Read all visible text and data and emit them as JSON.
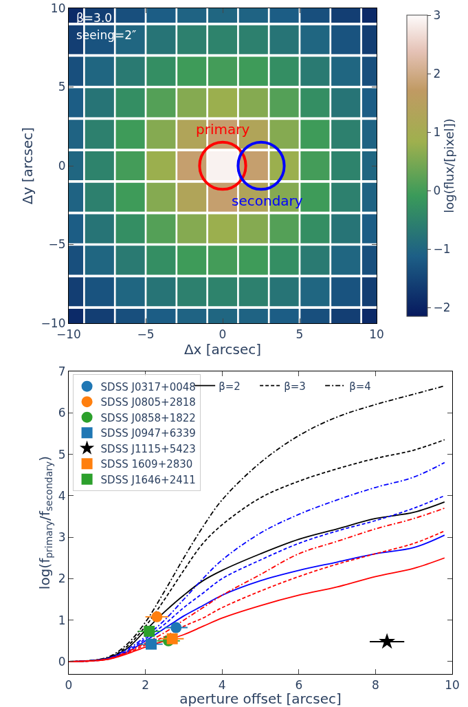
{
  "chart_data": [
    {
      "type": "scatter",
      "marker": "square",
      "xlabel": "Δx [arcsec]",
      "ylabel": "Δy [arcsec]",
      "clabel": "log(flux/[pixel])",
      "x": [
        -10,
        -8,
        -6,
        -4,
        -2,
        0,
        2,
        4,
        6,
        8,
        10,
        -10,
        -8,
        -6,
        -4,
        -2,
        0,
        2,
        4,
        6,
        8,
        10,
        -10,
        -8,
        -6,
        -4,
        -2,
        0,
        2,
        4,
        6,
        8,
        10,
        -10,
        -8,
        -6,
        -4,
        -2,
        0,
        2,
        4,
        6,
        8,
        10,
        -10,
        -8,
        -6,
        -4,
        -2,
        0,
        2,
        4,
        6,
        8,
        10,
        -10,
        -8,
        -6,
        -4,
        -2,
        0,
        2,
        4,
        6,
        8,
        10,
        -10,
        -8,
        -6,
        -4,
        -2,
        0,
        2,
        4,
        6,
        8,
        10,
        -10,
        -8,
        -6,
        -4,
        -2,
        0,
        2,
        4,
        6,
        8,
        10,
        -10,
        -8,
        -6,
        -4,
        -2,
        0,
        2,
        4,
        6,
        8,
        10,
        -10,
        -8,
        -6,
        -4,
        -2,
        0,
        2,
        4,
        6,
        8,
        10,
        -10,
        -8,
        -6,
        -4,
        -2,
        0,
        2,
        4,
        6,
        8,
        10
      ],
      "values": [
        10,
        10,
        10,
        10,
        10,
        10,
        10,
        10,
        10,
        10,
        10,
        8,
        8,
        8,
        8,
        8,
        8,
        8,
        8,
        8,
        8,
        8,
        6,
        6,
        6,
        6,
        6,
        6,
        6,
        6,
        6,
        6,
        6,
        4,
        4,
        4,
        4,
        4,
        4,
        4,
        4,
        4,
        4,
        4,
        2,
        2,
        2,
        2,
        2,
        2,
        2,
        2,
        2,
        2,
        2,
        0,
        0,
        0,
        0,
        0,
        0,
        0,
        0,
        0,
        0,
        0,
        -2,
        -2,
        -2,
        -2,
        -2,
        -2,
        -2,
        -2,
        -2,
        -2,
        -2,
        -4,
        -4,
        -4,
        -4,
        -4,
        -4,
        -4,
        -4,
        -4,
        -4,
        -4,
        -6,
        -6,
        -6,
        -6,
        -6,
        -6,
        -6,
        -6,
        -6,
        -6,
        -6,
        -8,
        -8,
        -8,
        -8,
        -8,
        -8,
        -8,
        -8,
        -8,
        -8,
        -8,
        -10,
        -10,
        -10,
        -10,
        -10,
        -10,
        -10,
        -10,
        -10,
        -10,
        -10
      ],
      "cvalues": [
        -1.9,
        -1.6,
        -1.35,
        -1.15,
        -1.05,
        -1.0,
        -1.05,
        -1.15,
        -1.35,
        -1.6,
        -1.9,
        -1.6,
        -1.3,
        -1.0,
        -0.75,
        -0.55,
        -0.5,
        -0.55,
        -0.75,
        -1.0,
        -1.3,
        -1.6,
        -1.35,
        -1.0,
        -0.65,
        -0.3,
        -0.05,
        0.0,
        -0.05,
        -0.3,
        -0.65,
        -1.0,
        -1.35,
        -1.15,
        -0.75,
        -0.3,
        0.15,
        0.6,
        0.8,
        0.6,
        0.15,
        -0.3,
        -0.75,
        -1.15,
        -1.05,
        -0.55,
        -0.05,
        0.6,
        1.3,
        1.8,
        1.3,
        0.6,
        -0.05,
        -0.55,
        -1.05,
        -1.0,
        -0.5,
        0.0,
        0.8,
        1.8,
        2.9,
        1.8,
        0.8,
        0.0,
        -0.5,
        -1.0,
        -1.05,
        -0.55,
        -0.05,
        0.6,
        1.3,
        1.8,
        1.3,
        0.6,
        -0.05,
        -0.55,
        -1.05,
        -1.15,
        -0.75,
        -0.3,
        0.15,
        0.6,
        0.8,
        0.6,
        0.15,
        -0.3,
        -0.75,
        -1.15,
        -1.35,
        -1.0,
        -0.65,
        -0.3,
        -0.05,
        0.0,
        -0.05,
        -0.3,
        -0.65,
        -1.0,
        -1.35,
        -1.6,
        -1.3,
        -1.0,
        -0.75,
        -0.55,
        -0.5,
        -0.55,
        -0.75,
        -1.0,
        -1.3,
        -1.6,
        -1.9,
        -1.6,
        -1.35,
        -1.15,
        -1.05,
        -1.0,
        -1.05,
        -1.15,
        -1.35,
        -1.6,
        -1.9
      ],
      "xlim": [
        -10,
        10
      ],
      "ylim": [
        -10,
        10
      ],
      "xticks": [
        -10,
        -5,
        0,
        5,
        10
      ],
      "yticks": [
        -10,
        -5,
        0,
        5,
        10
      ],
      "clim": [
        -2.15,
        3
      ],
      "cticks": [
        -2,
        -1,
        0,
        1,
        2,
        3
      ],
      "annotations": [
        "β=3.0",
        "seeing=2″",
        "primary",
        "secondary"
      ]
    },
    {
      "type": "line",
      "xlabel": "aperture offset [arcsec]",
      "ylabel": "log(f$_{primary}$/f$_{secondary}$)",
      "xlim": [
        0,
        10
      ],
      "ylim": [
        -0.3,
        7
      ],
      "xticks": [
        0,
        2,
        4,
        6,
        8,
        10
      ],
      "yticks": [
        0,
        1,
        2,
        3,
        4,
        5,
        6,
        7
      ],
      "legend": "top left",
      "x": [
        0,
        1,
        1.5,
        2,
        2.5,
        3,
        3.5,
        4,
        5,
        6,
        7,
        8,
        9,
        9.8
      ],
      "series": [
        {
          "name": "β=2",
          "color": "#000000",
          "line_style": "solid",
          "values": [
            0,
            0.08,
            0.3,
            0.75,
            1.2,
            1.6,
            1.95,
            2.2,
            2.6,
            2.95,
            3.2,
            3.45,
            3.6,
            3.85
          ]
        },
        {
          "name": "β=3",
          "color": "#000000",
          "line_style": "dashed",
          "values": [
            0,
            0.08,
            0.35,
            0.85,
            1.5,
            2.2,
            2.85,
            3.3,
            3.95,
            4.35,
            4.65,
            4.9,
            5.1,
            5.35
          ]
        },
        {
          "name": "β=4",
          "color": "#000000",
          "line_style": "dashdot",
          "values": [
            0,
            0.1,
            0.4,
            0.95,
            1.7,
            2.5,
            3.25,
            3.9,
            4.8,
            5.45,
            5.9,
            6.2,
            6.45,
            6.65
          ]
        },
        {
          "color": "#0000ff",
          "line_style": "solid",
          "values": [
            0,
            0.06,
            0.22,
            0.5,
            0.8,
            1.1,
            1.35,
            1.6,
            1.95,
            2.2,
            2.4,
            2.6,
            2.75,
            3.05
          ]
        },
        {
          "color": "#0000ff",
          "line_style": "dashed",
          "values": [
            0,
            0.07,
            0.25,
            0.55,
            0.9,
            1.3,
            1.65,
            2.0,
            2.45,
            2.85,
            3.15,
            3.4,
            3.7,
            4.0
          ]
        },
        {
          "color": "#0000ff",
          "line_style": "dashdot",
          "values": [
            0,
            0.07,
            0.28,
            0.6,
            1.0,
            1.5,
            2.0,
            2.45,
            3.1,
            3.55,
            3.9,
            4.2,
            4.45,
            4.8
          ]
        },
        {
          "color": "#ff0000",
          "line_style": "solid",
          "values": [
            0,
            0.05,
            0.18,
            0.35,
            0.5,
            0.65,
            0.85,
            1.05,
            1.35,
            1.6,
            1.8,
            2.05,
            2.25,
            2.5
          ]
        },
        {
          "color": "#ff0000",
          "line_style": "dashed",
          "values": [
            0,
            0.05,
            0.2,
            0.4,
            0.6,
            0.85,
            1.05,
            1.3,
            1.7,
            2.05,
            2.35,
            2.6,
            2.85,
            3.15
          ]
        },
        {
          "color": "#ff0000",
          "line_style": "dashdot",
          "values": [
            0,
            0.06,
            0.22,
            0.45,
            0.7,
            1.0,
            1.3,
            1.6,
            2.1,
            2.6,
            2.9,
            3.2,
            3.45,
            3.7
          ]
        },
        {
          "type": "scatter",
          "name": "SDSS J0317+0048",
          "color": "#1f77b4",
          "marker": "circle",
          "x": [
            2.8
          ],
          "values": [
            0.82
          ],
          "xerrors": [
            0.3
          ]
        },
        {
          "type": "scatter",
          "name": "SDSS J0805+2818",
          "color": "#ff7f0e",
          "marker": "circle",
          "x": [
            2.3
          ],
          "values": [
            1.08
          ],
          "xerrors": [
            0.3
          ]
        },
        {
          "type": "scatter",
          "name": "SDSS J0858+1822",
          "color": "#2ca02c",
          "marker": "circle",
          "x": [
            2.6
          ],
          "values": [
            0.5
          ],
          "xerrors": [
            0.3
          ]
        },
        {
          "type": "scatter",
          "name": "SDSS J0947+6339",
          "color": "#1f77b4",
          "marker": "square",
          "x": [
            2.15
          ],
          "values": [
            0.42
          ],
          "xerrors": [
            0.3
          ]
        },
        {
          "type": "scatter",
          "name": "SDSS J1115+5423",
          "color": "#000000",
          "marker": "star",
          "x": [
            8.3
          ],
          "values": [
            0.48
          ],
          "xerrors": [
            0.45
          ]
        },
        {
          "type": "scatter",
          "name": "SDSS 1609+2830",
          "color": "#ff7f0e",
          "marker": "square",
          "x": [
            2.7
          ],
          "values": [
            0.55
          ],
          "xerrors": [
            0.3
          ]
        },
        {
          "type": "scatter",
          "name": "SDSS J1646+2411",
          "color": "#2ca02c",
          "marker": "square",
          "x": [
            2.1
          ],
          "values": [
            0.73
          ],
          "xerrors": [
            0.3
          ]
        }
      ]
    }
  ]
}
